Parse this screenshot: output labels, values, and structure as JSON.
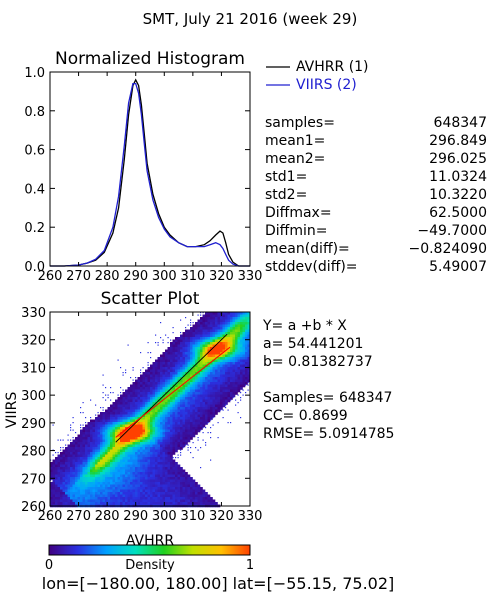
{
  "header": {
    "title": "SMT,  July 21 2016 (week 29)"
  },
  "histogram": {
    "title": "Normalized Histogram",
    "legend": [
      {
        "label": "AVHRR (1)",
        "color": "#000000"
      },
      {
        "label": "VIIRS (2)",
        "color": "#2020d0"
      }
    ],
    "stats": [
      {
        "label": "samples=",
        "value": "648347"
      },
      {
        "label": "mean1=",
        "value": "296.849"
      },
      {
        "label": "mean2=",
        "value": "296.025"
      },
      {
        "label": "std1=",
        "value": "11.0324"
      },
      {
        "label": "std2=",
        "value": "10.3220"
      },
      {
        "label": "Diffmax=",
        "value": "62.5000"
      },
      {
        "label": "Diffmin=",
        "value": "−49.7000"
      },
      {
        "label": "mean(diff)=",
        "value": "−0.824090"
      },
      {
        "label": "stddev(diff)=",
        "value": "5.49007"
      }
    ]
  },
  "scatter": {
    "title": "Scatter Plot",
    "info": [
      "Y= a +b * X",
      "a= 54.441201",
      "b= 0.81382737",
      "",
      "Samples= 648347",
      "CC=  0.8699",
      "RMSE= 5.0914785"
    ]
  },
  "colorbar": {
    "label": "Density",
    "min_label": "0",
    "max_label": "1",
    "colors": [
      "#400080",
      "#2a30e0",
      "#00a0ff",
      "#00e0c0",
      "#20d020",
      "#c0e000",
      "#ffc000",
      "#ff4000"
    ]
  },
  "footer": {
    "range": "lon=[−180.00, 180.00] lat=[−55.15, 75.02]"
  },
  "chart_data": [
    {
      "type": "line",
      "title": "Normalized Histogram",
      "xlabel": "",
      "ylabel": "",
      "xlim": [
        260,
        330
      ],
      "ylim": [
        0,
        1
      ],
      "xticks": [
        "260",
        "270",
        "280",
        "290",
        "300",
        "310",
        "320",
        "330"
      ],
      "yticks": [
        "0.0",
        "0.2",
        "0.4",
        "0.6",
        "0.8",
        "1.0"
      ],
      "series": [
        {
          "name": "AVHRR (1)",
          "color": "#000000",
          "x": [
            260,
            265,
            270,
            273,
            276,
            279,
            282,
            284,
            286,
            287.5,
            289,
            290,
            291,
            292,
            293,
            294,
            296,
            298,
            300,
            302,
            305,
            308,
            311,
            314,
            316,
            318,
            319.5,
            320.5,
            321.5,
            322.5,
            324,
            326,
            328,
            330
          ],
          "y": [
            0.0,
            0.0,
            0.005,
            0.015,
            0.03,
            0.07,
            0.17,
            0.3,
            0.55,
            0.78,
            0.93,
            0.96,
            0.93,
            0.83,
            0.68,
            0.53,
            0.37,
            0.27,
            0.2,
            0.16,
            0.12,
            0.1,
            0.1,
            0.11,
            0.13,
            0.16,
            0.18,
            0.17,
            0.12,
            0.06,
            0.02,
            0.0,
            0.0,
            0.0
          ]
        },
        {
          "name": "VIIRS (2)",
          "color": "#2020d0",
          "x": [
            260,
            265,
            270,
            273,
            276,
            279,
            282,
            284,
            286,
            287.5,
            289,
            290,
            291,
            292,
            293,
            294,
            296,
            298,
            300,
            302,
            305,
            308,
            311,
            314,
            316,
            318,
            319.5,
            320.5,
            321.5,
            322.5,
            324,
            326,
            328,
            330
          ],
          "y": [
            0.0,
            0.0,
            0.005,
            0.015,
            0.035,
            0.08,
            0.2,
            0.36,
            0.62,
            0.84,
            0.94,
            0.94,
            0.89,
            0.78,
            0.63,
            0.49,
            0.34,
            0.25,
            0.19,
            0.15,
            0.12,
            0.1,
            0.1,
            0.1,
            0.11,
            0.12,
            0.11,
            0.09,
            0.06,
            0.03,
            0.01,
            0.0,
            0.0,
            0.0
          ]
        }
      ]
    },
    {
      "type": "heatmap",
      "title": "Scatter Plot",
      "xlabel": "AVHRR",
      "ylabel": "VIIRS",
      "xlim": [
        260,
        330
      ],
      "ylim": [
        260,
        330
      ],
      "xticks": [
        "260",
        "270",
        "280",
        "290",
        "300",
        "310",
        "320",
        "330"
      ],
      "yticks": [
        "260",
        "270",
        "280",
        "290",
        "300",
        "310",
        "320",
        "330"
      ],
      "fit_line": {
        "a": 54.441201,
        "b": 0.81382737,
        "x": [
          283,
          323
        ]
      },
      "diagonal": {
        "x": [
          283,
          322
        ]
      },
      "density_peak": [
        {
          "x": 288,
          "y": 287
        },
        {
          "x": 318,
          "y": 317
        }
      ],
      "n_samples": 648347,
      "cc": 0.8699,
      "rmse": 5.0914785
    }
  ]
}
